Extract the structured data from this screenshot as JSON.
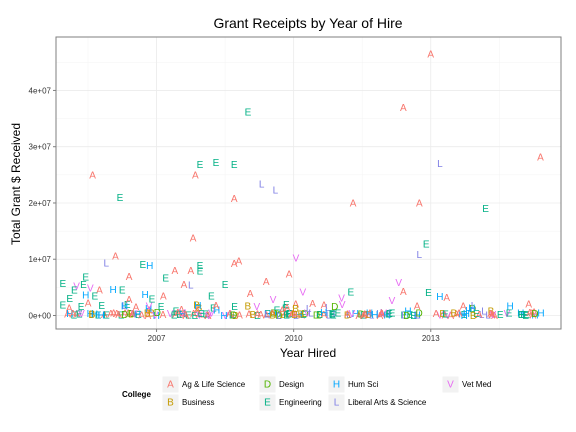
{
  "chart_data": {
    "type": "scatter",
    "title": "Grant Receipts by Year of Hire",
    "xlabel": "Year Hired",
    "ylabel": "Total Grant $ Received",
    "xlim": [
      2004.8,
      2015.85
    ],
    "ylim": [
      -2400000,
      49500000
    ],
    "x_ticks": [
      2007,
      2010,
      2013
    ],
    "x_tick_labels": [
      "2007",
      "2010",
      "2013"
    ],
    "y_ticks": [
      0,
      10000000,
      20000000,
      30000000,
      40000000
    ],
    "y_tick_labels": [
      "0e+00",
      "1e+07",
      "2e+07",
      "3e+07",
      "4e+07"
    ],
    "grid": true,
    "legend": {
      "title": "College",
      "placement": "bottom",
      "entries": [
        {
          "code": "A",
          "label": "Ag & Life Science",
          "color": "#F8766D"
        },
        {
          "code": "B",
          "label": "Business",
          "color": "#C49A00"
        },
        {
          "code": "D",
          "label": "Design",
          "color": "#53B400"
        },
        {
          "code": "E",
          "label": "Engineering",
          "color": "#00B084"
        },
        {
          "code": "H",
          "label": "Hum Sci",
          "color": "#00A6FF"
        },
        {
          "code": "L",
          "label": "Liberal Arts & Science",
          "color": "#7F7FE5"
        },
        {
          "code": "V",
          "label": "Vet Med",
          "color": "#E76BF3"
        }
      ]
    },
    "highlighted_points": [
      {
        "c": "A",
        "x": 2013.0,
        "y": 46500000
      },
      {
        "c": "A",
        "x": 2012.4,
        "y": 37000000
      },
      {
        "c": "E",
        "x": 2009.0,
        "y": 36200000
      },
      {
        "c": "A",
        "x": 2015.4,
        "y": 28200000
      },
      {
        "c": "L",
        "x": 2013.2,
        "y": 27000000
      },
      {
        "c": "E",
        "x": 2008.3,
        "y": 27200000
      },
      {
        "c": "E",
        "x": 2007.95,
        "y": 26800000
      },
      {
        "c": "E",
        "x": 2008.7,
        "y": 26800000
      },
      {
        "c": "A",
        "x": 2005.6,
        "y": 25000000
      },
      {
        "c": "A",
        "x": 2007.85,
        "y": 25000000
      },
      {
        "c": "L",
        "x": 2009.3,
        "y": 23400000
      },
      {
        "c": "L",
        "x": 2009.6,
        "y": 22300000
      },
      {
        "c": "E",
        "x": 2006.2,
        "y": 21000000
      },
      {
        "c": "A",
        "x": 2008.7,
        "y": 20800000
      },
      {
        "c": "A",
        "x": 2011.3,
        "y": 20000000
      },
      {
        "c": "A",
        "x": 2012.75,
        "y": 20000000
      },
      {
        "c": "E",
        "x": 2014.2,
        "y": 19000000
      },
      {
        "c": "A",
        "x": 2007.8,
        "y": 13800000
      },
      {
        "c": "E",
        "x": 2012.9,
        "y": 12700000
      },
      {
        "c": "L",
        "x": 2012.75,
        "y": 10800000
      },
      {
        "c": "A",
        "x": 2006.1,
        "y": 10600000
      },
      {
        "c": "V",
        "x": 2010.05,
        "y": 10200000
      },
      {
        "c": "A",
        "x": 2008.8,
        "y": 9700000
      },
      {
        "c": "A",
        "x": 2008.7,
        "y": 9200000
      },
      {
        "c": "L",
        "x": 2005.9,
        "y": 9300000
      },
      {
        "c": "E",
        "x": 2006.7,
        "y": 9100000
      },
      {
        "c": "H",
        "x": 2006.85,
        "y": 8900000
      },
      {
        "c": "E",
        "x": 2007.95,
        "y": 8900000
      },
      {
        "c": "A",
        "x": 2007.4,
        "y": 8000000
      },
      {
        "c": "A",
        "x": 2007.75,
        "y": 8000000
      },
      {
        "c": "E",
        "x": 2007.95,
        "y": 7900000
      },
      {
        "c": "A",
        "x": 2009.9,
        "y": 7400000
      },
      {
        "c": "E",
        "x": 2005.45,
        "y": 6800000
      },
      {
        "c": "A",
        "x": 2006.4,
        "y": 6900000
      },
      {
        "c": "E",
        "x": 2007.2,
        "y": 6700000
      },
      {
        "c": "A",
        "x": 2009.4,
        "y": 6000000
      },
      {
        "c": "V",
        "x": 2012.3,
        "y": 5900000
      },
      {
        "c": "E",
        "x": 2004.95,
        "y": 5700000
      },
      {
        "c": "E",
        "x": 2005.4,
        "y": 5500000
      },
      {
        "c": "E",
        "x": 2008.5,
        "y": 5500000
      },
      {
        "c": "A",
        "x": 2007.6,
        "y": 5500000
      },
      {
        "c": "L",
        "x": 2007.75,
        "y": 5400000
      },
      {
        "c": "V",
        "x": 2005.25,
        "y": 5200000
      },
      {
        "c": "V",
        "x": 2005.55,
        "y": 4900000
      },
      {
        "c": "E",
        "x": 2005.2,
        "y": 4500000
      },
      {
        "c": "H",
        "x": 2006.05,
        "y": 4600000
      },
      {
        "c": "E",
        "x": 2006.25,
        "y": 4500000
      },
      {
        "c": "A",
        "x": 2005.75,
        "y": 4500000
      },
      {
        "c": "V",
        "x": 2010.2,
        "y": 4200000
      },
      {
        "c": "E",
        "x": 2011.25,
        "y": 4200000
      },
      {
        "c": "A",
        "x": 2012.4,
        "y": 4300000
      },
      {
        "c": "E",
        "x": 2012.95,
        "y": 4100000
      },
      {
        "c": "A",
        "x": 2009.05,
        "y": 3900000
      },
      {
        "c": "H",
        "x": 2005.45,
        "y": 3600000
      },
      {
        "c": "E",
        "x": 2005.65,
        "y": 3500000
      },
      {
        "c": "H",
        "x": 2006.75,
        "y": 3700000
      },
      {
        "c": "A",
        "x": 2007.15,
        "y": 3500000
      },
      {
        "c": "E",
        "x": 2008.2,
        "y": 3500000
      },
      {
        "c": "H",
        "x": 2013.2,
        "y": 3400000
      },
      {
        "c": "A",
        "x": 2013.35,
        "y": 3200000
      },
      {
        "c": "V",
        "x": 2011.05,
        "y": 3100000
      },
      {
        "c": "E",
        "x": 2005.1,
        "y": 3000000
      },
      {
        "c": "A",
        "x": 2006.4,
        "y": 2800000
      },
      {
        "c": "E",
        "x": 2006.9,
        "y": 2900000
      },
      {
        "c": "V",
        "x": 2009.55,
        "y": 2800000
      },
      {
        "c": "V",
        "x": 2012.15,
        "y": 2700000
      },
      {
        "c": "E",
        "x": 2004.95,
        "y": 1900000
      },
      {
        "c": "E",
        "x": 2005.35,
        "y": 1600000
      },
      {
        "c": "E",
        "x": 2005.8,
        "y": 1800000
      },
      {
        "c": "H",
        "x": 2006.3,
        "y": 1700000
      },
      {
        "c": "A",
        "x": 2006.55,
        "y": 1500000
      },
      {
        "c": "E",
        "x": 2007.1,
        "y": 1600000
      },
      {
        "c": "A",
        "x": 2008.3,
        "y": 1800000
      },
      {
        "c": "D",
        "x": 2010.9,
        "y": 1600000
      },
      {
        "c": "A",
        "x": 2012.7,
        "y": 1700000
      },
      {
        "c": "H",
        "x": 2013.9,
        "y": 1300000
      }
    ]
  }
}
